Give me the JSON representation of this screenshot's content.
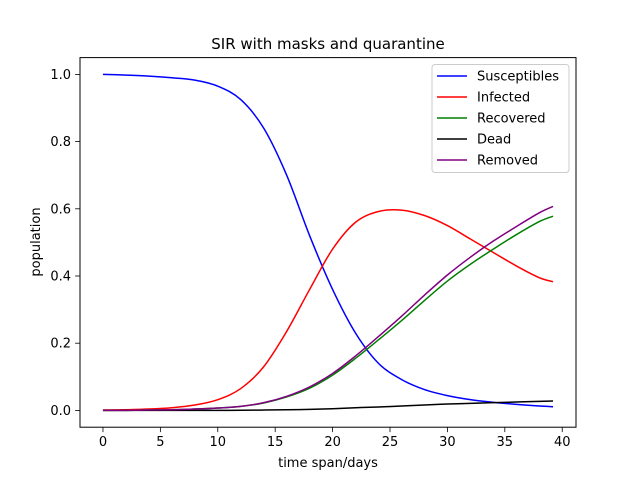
{
  "chart_data": {
    "type": "line",
    "title": "SIR with masks and quarantine",
    "xlabel": "time span/days",
    "ylabel": "population",
    "xlim": [
      -2.0,
      41.2
    ],
    "ylim": [
      -0.05,
      1.05
    ],
    "xticks": [
      0,
      5,
      10,
      15,
      20,
      25,
      30,
      35,
      40
    ],
    "xtick_labels": [
      "0",
      "5",
      "10",
      "15",
      "20",
      "25",
      "30",
      "35",
      "40"
    ],
    "yticks": [
      0.0,
      0.2,
      0.4,
      0.6,
      0.8,
      1.0
    ],
    "ytick_labels": [
      "0.0",
      "0.2",
      "0.4",
      "0.6",
      "0.8",
      "1.0"
    ],
    "grid": false,
    "legend_position": "upper right",
    "x": [
      0,
      2,
      4,
      6,
      8,
      10,
      12,
      14,
      16,
      18,
      20,
      22,
      24,
      26,
      28,
      30,
      32,
      34,
      36,
      38,
      39.2
    ],
    "series": [
      {
        "name": "Susceptibles",
        "color": "#0000ff",
        "values": [
          1.0,
          0.998,
          0.995,
          0.99,
          0.983,
          0.965,
          0.925,
          0.84,
          0.7,
          0.52,
          0.36,
          0.23,
          0.14,
          0.092,
          0.062,
          0.044,
          0.032,
          0.024,
          0.018,
          0.013,
          0.011
        ]
      },
      {
        "name": "Infected",
        "color": "#ff0000",
        "values": [
          0.001,
          0.002,
          0.004,
          0.008,
          0.016,
          0.032,
          0.065,
          0.13,
          0.235,
          0.36,
          0.48,
          0.56,
          0.592,
          0.596,
          0.58,
          0.55,
          0.51,
          0.47,
          0.43,
          0.395,
          0.383
        ]
      },
      {
        "name": "Recovered",
        "color": "#008000",
        "values": [
          0.0,
          0.0,
          0.001,
          0.002,
          0.004,
          0.007,
          0.012,
          0.022,
          0.04,
          0.066,
          0.105,
          0.155,
          0.21,
          0.267,
          0.327,
          0.385,
          0.435,
          0.48,
          0.523,
          0.562,
          0.578
        ]
      },
      {
        "name": "Dead",
        "color": "#000000",
        "values": [
          0.0,
          0.0,
          0.0,
          0.0,
          0.0,
          0.0,
          0.0005,
          0.001,
          0.002,
          0.003,
          0.005,
          0.008,
          0.01,
          0.013,
          0.016,
          0.019,
          0.021,
          0.023,
          0.025,
          0.027,
          0.028
        ]
      },
      {
        "name": "Removed",
        "color": "#800080",
        "values": [
          0.0,
          0.0,
          0.001,
          0.002,
          0.004,
          0.007,
          0.012,
          0.023,
          0.042,
          0.07,
          0.11,
          0.162,
          0.22,
          0.28,
          0.343,
          0.403,
          0.456,
          0.504,
          0.547,
          0.588,
          0.607
        ]
      }
    ]
  }
}
